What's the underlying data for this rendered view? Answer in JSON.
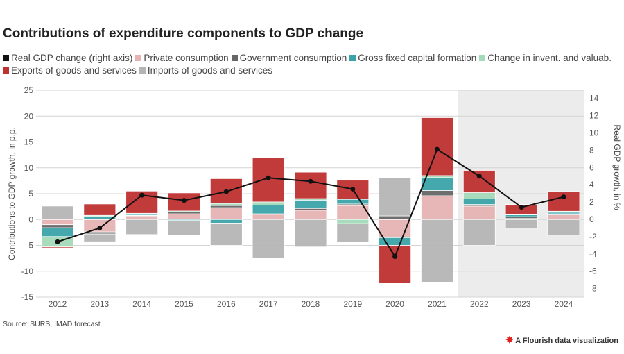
{
  "title": "Contributions of expenditure components to GDP change",
  "source": "Source: SURS, IMAD forecast.",
  "footer": {
    "icon": "flourish-star-icon",
    "label": "A Flourish data visualization"
  },
  "chart_data": {
    "type": "bar",
    "stacked": true,
    "categories": [
      "2012",
      "2013",
      "2014",
      "2015",
      "2016",
      "2017",
      "2018",
      "2019",
      "2020",
      "2021",
      "2022",
      "2023",
      "2024"
    ],
    "ylabel": "Contributions to GDP growth, in p.p.",
    "y2label": "Real GDP growth, in %",
    "ylim": [
      -15,
      25
    ],
    "yticks": [
      -15,
      -10,
      -5,
      0,
      5,
      10,
      15,
      20,
      25
    ],
    "y2lim": [
      -9,
      15
    ],
    "y2ticks": [
      -8,
      -6,
      -4,
      -2,
      0,
      2,
      4,
      6,
      8,
      10,
      12,
      14
    ],
    "grid": true,
    "legend_position": "top",
    "forecast_shading_from": "2022",
    "series": [
      {
        "name": "Private consumption",
        "color": "#e6b3b3",
        "values": [
          -1.0,
          -2.4,
          0.7,
          1.1,
          2.3,
          1.0,
          1.8,
          2.7,
          -3.5,
          4.6,
          2.6,
          0.2,
          0.9
        ]
      },
      {
        "name": "Government consumption",
        "color": "#666666",
        "values": [
          -0.6,
          -0.4,
          0.1,
          0.35,
          0.4,
          0.1,
          0.35,
          0.3,
          0.7,
          1.0,
          0.3,
          0.35,
          0.2
        ]
      },
      {
        "name": "Gross fixed capital formation",
        "color": "#3aa3a8",
        "values": [
          -1.7,
          0.6,
          0.2,
          -0.2,
          -0.7,
          1.7,
          1.6,
          0.9,
          -1.5,
          2.5,
          1.1,
          0.35,
          0.3
        ]
      },
      {
        "name": "Change in invent. and valuab.",
        "color": "#a3dab8",
        "values": [
          -2.0,
          0.2,
          0.2,
          0.2,
          0.4,
          0.6,
          0.3,
          -0.8,
          0.0,
          0.4,
          1.2,
          0.1,
          0.2
        ]
      },
      {
        "name": "Exports of goods and services",
        "color": "#bf3030",
        "values": [
          -0.2,
          2.2,
          4.3,
          3.5,
          4.8,
          8.5,
          5.1,
          3.7,
          -7.3,
          11.2,
          4.3,
          1.9,
          3.8
        ]
      },
      {
        "name": "Imports of goods and services",
        "color": "#b5b5b5",
        "values": [
          2.6,
          -1.5,
          -2.9,
          -2.9,
          -4.3,
          -7.4,
          -5.3,
          -3.6,
          7.4,
          -12.1,
          -5.0,
          -1.8,
          -3.0
        ]
      }
    ],
    "line": {
      "name": "Real GDP change (right axis)",
      "color": "#111111",
      "axis": "right",
      "values": [
        -2.6,
        -1.0,
        2.8,
        2.2,
        3.2,
        4.8,
        4.4,
        3.5,
        -4.3,
        8.1,
        5.0,
        1.4,
        2.6
      ]
    }
  }
}
